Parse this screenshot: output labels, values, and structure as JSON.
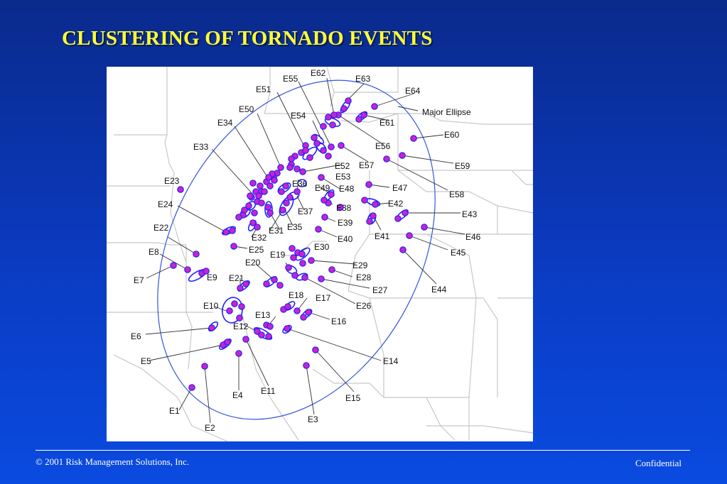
{
  "slide": {
    "title": "CLUSTERING OF TORNADO EVENTS",
    "footer_left": "© 2001 Risk Management Solutions, Inc.",
    "footer_right": "Confidential"
  },
  "colors": {
    "background": "#0b3bc2",
    "title": "#ffff33",
    "event_fill": "#cc22cc",
    "event_outline": "#2222ff",
    "ellipse": "#3355dd",
    "map_lines": "#c8c8c8"
  },
  "map": {
    "major_ellipse_label": "Major Ellipse",
    "event_labels": [
      "E1",
      "E2",
      "E3",
      "E4",
      "E5",
      "E6",
      "E7",
      "E8",
      "E9",
      "E10",
      "E11",
      "E12",
      "E13",
      "E14",
      "E15",
      "E16",
      "E17",
      "E18",
      "E19",
      "E20",
      "E21",
      "E22",
      "E23",
      "E24",
      "E25",
      "E26",
      "E27",
      "E28",
      "E29",
      "E30",
      "E31",
      "E32",
      "E33",
      "E34",
      "E35",
      "E36",
      "E37",
      "E38",
      "E39",
      "E40",
      "E41",
      "E42",
      "E43",
      "E44",
      "E45",
      "E46",
      "E47",
      "E48",
      "E49",
      "E50",
      "E51",
      "E52",
      "E53",
      "E54",
      "E55",
      "E56",
      "E57",
      "E58",
      "E59",
      "E60",
      "E61",
      "E62",
      "E63",
      "E64"
    ]
  }
}
